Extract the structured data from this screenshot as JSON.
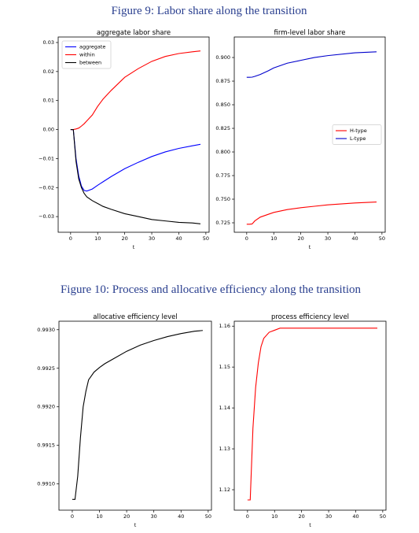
{
  "figures": [
    "Figure 9: Labor share along the transition",
    "Figure 10: Process and allocative efficiency along the transition"
  ],
  "chart_data": [
    {
      "type": "line",
      "title": "aggregate labor share",
      "x_label": "t",
      "legend": "upper left",
      "x": [
        0,
        1,
        2,
        3,
        4,
        5,
        6,
        8,
        10,
        12,
        15,
        20,
        25,
        30,
        35,
        40,
        45,
        48
      ],
      "series": [
        {
          "name": "aggregate",
          "color": "#0000ff",
          "values": [
            0,
            0,
            -0.01,
            -0.016,
            -0.0195,
            -0.021,
            -0.0212,
            -0.0205,
            -0.0192,
            -0.018,
            -0.0162,
            -0.0135,
            -0.0113,
            -0.0093,
            -0.0077,
            -0.0065,
            -0.0056,
            -0.0051
          ]
        },
        {
          "name": "within",
          "color": "#ff0000",
          "values": [
            0,
            0,
            0.0002,
            0.0005,
            0.0012,
            0.002,
            0.003,
            0.005,
            0.008,
            0.0105,
            0.0135,
            0.018,
            0.021,
            0.0235,
            0.0252,
            0.0262,
            0.0268,
            0.0271
          ]
        },
        {
          "name": "between",
          "color": "#000000",
          "values": [
            0,
            0,
            -0.011,
            -0.017,
            -0.02,
            -0.022,
            -0.0232,
            -0.0245,
            -0.0255,
            -0.0265,
            -0.0275,
            -0.029,
            -0.03,
            -0.031,
            -0.0315,
            -0.032,
            -0.0322,
            -0.0325
          ]
        }
      ],
      "xlim": [
        -4.6,
        51.2
      ],
      "ylim": [
        -0.0354,
        0.0319
      ],
      "xticks": [
        0,
        10,
        20,
        30,
        40,
        50
      ],
      "yticks": [
        {
          "value": -0.03,
          "label": "−0.03"
        },
        {
          "value": -0.02,
          "label": "−0.02"
        },
        {
          "value": -0.01,
          "label": "−0.01"
        },
        {
          "value": 0,
          "label": "0.00"
        },
        {
          "value": 0.01,
          "label": "0.01"
        },
        {
          "value": 0.02,
          "label": "0.02"
        },
        {
          "value": 0.03,
          "label": "0.03"
        }
      ]
    },
    {
      "type": "line",
      "title": "firm-level labor share",
      "x_label": "t",
      "legend": "center right",
      "x": [
        0,
        1,
        2,
        3,
        5,
        8,
        10,
        15,
        20,
        25,
        30,
        40,
        48
      ],
      "series": [
        {
          "name": "H-type",
          "color": "#ff0000",
          "values": [
            0.7235,
            0.7235,
            0.7238,
            0.727,
            0.731,
            0.734,
            0.736,
            0.739,
            0.741,
            0.7425,
            0.744,
            0.746,
            0.747
          ]
        },
        {
          "name": "L-type",
          "color": "#0000cc",
          "values": [
            0.879,
            0.879,
            0.8792,
            0.88,
            0.882,
            0.886,
            0.889,
            0.894,
            0.897,
            0.9,
            0.902,
            0.905,
            0.906
          ]
        }
      ],
      "xlim": [
        -4.6,
        51.2
      ],
      "ylim": [
        0.715,
        0.9217
      ],
      "xticks": [
        0,
        10,
        20,
        30,
        40,
        50
      ],
      "yticks": [
        {
          "value": 0.725,
          "label": "0.725"
        },
        {
          "value": 0.75,
          "label": "0.750"
        },
        {
          "value": 0.775,
          "label": "0.775"
        },
        {
          "value": 0.8,
          "label": "0.800"
        },
        {
          "value": 0.825,
          "label": "0.825"
        },
        {
          "value": 0.85,
          "label": "0.850"
        },
        {
          "value": 0.875,
          "label": "0.875"
        },
        {
          "value": 0.9,
          "label": "0.900"
        }
      ]
    },
    {
      "type": "line",
      "title": "allocative efficiency level",
      "x_label": "t",
      "x": [
        0,
        1,
        2,
        3,
        4,
        5,
        6,
        8,
        10,
        12,
        15,
        20,
        25,
        30,
        35,
        40,
        45,
        48
      ],
      "series": [
        {
          "color": "#000000",
          "values": [
            0.9908,
            0.9908,
            0.9911,
            0.9916,
            0.992,
            0.9922,
            0.99235,
            0.99245,
            0.99251,
            0.99256,
            0.99262,
            0.99272,
            0.9928,
            0.99286,
            0.99291,
            0.99295,
            0.99298,
            0.99299
          ]
        }
      ],
      "xlim": [
        -4.9,
        51.2
      ],
      "ylim": [
        0.99066,
        0.99311
      ],
      "xticks": [
        0,
        10,
        20,
        30,
        40,
        50
      ],
      "yticks": [
        {
          "value": 0.991,
          "label": "0.9910"
        },
        {
          "value": 0.9915,
          "label": "0.9915"
        },
        {
          "value": 0.992,
          "label": "0.9920"
        },
        {
          "value": 0.9925,
          "label": "0.9925"
        },
        {
          "value": 0.993,
          "label": "0.9930"
        }
      ]
    },
    {
      "type": "line",
      "title": "process efficiency level",
      "x_label": "t",
      "x": [
        0,
        1,
        2,
        3,
        4,
        5,
        6,
        8,
        10,
        12,
        15,
        20,
        30,
        40,
        48
      ],
      "series": [
        {
          "color": "#ff0000",
          "values": [
            1.1175,
            1.1175,
            1.135,
            1.145,
            1.151,
            1.155,
            1.157,
            1.1585,
            1.159,
            1.1595,
            1.1595,
            1.1595,
            1.1595,
            1.1595,
            1.1595
          ]
        }
      ],
      "xlim": [
        -4.9,
        51.2
      ],
      "ylim": [
        1.115,
        1.1612
      ],
      "xticks": [
        0,
        10,
        20,
        30,
        40,
        50
      ],
      "yticks": [
        1.12,
        1.13,
        1.14,
        1.15,
        1.16
      ]
    }
  ]
}
